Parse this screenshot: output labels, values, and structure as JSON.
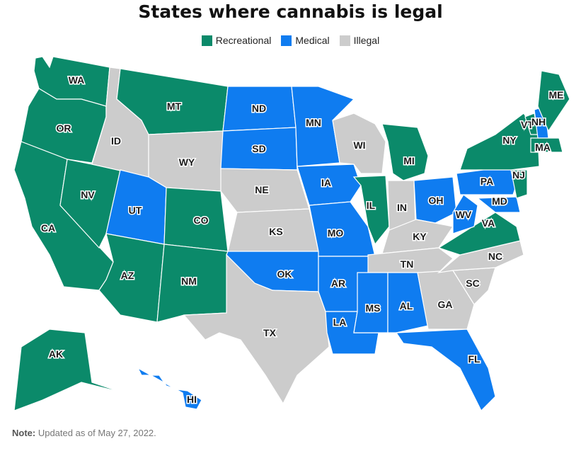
{
  "title": "States where cannabis is legal",
  "legend": [
    {
      "label": "Recreational",
      "status": "recreational"
    },
    {
      "label": "Medical",
      "status": "medical"
    },
    {
      "label": "Illegal",
      "status": "illegal"
    }
  ],
  "colors": {
    "recreational": "#0b8a6a",
    "medical": "#0f7cf0",
    "illegal": "#cccccc"
  },
  "note": {
    "label": "Note:",
    "text": " Updated as of May 27, 2022."
  },
  "states": [
    {
      "abbr": "WA",
      "status": "recreational"
    },
    {
      "abbr": "OR",
      "status": "recreational"
    },
    {
      "abbr": "CA",
      "status": "recreational"
    },
    {
      "abbr": "NV",
      "status": "recreational"
    },
    {
      "abbr": "ID",
      "status": "illegal"
    },
    {
      "abbr": "MT",
      "status": "recreational"
    },
    {
      "abbr": "WY",
      "status": "illegal"
    },
    {
      "abbr": "UT",
      "status": "medical"
    },
    {
      "abbr": "CO",
      "status": "recreational"
    },
    {
      "abbr": "AZ",
      "status": "recreational"
    },
    {
      "abbr": "NM",
      "status": "recreational"
    },
    {
      "abbr": "ND",
      "status": "medical"
    },
    {
      "abbr": "SD",
      "status": "medical"
    },
    {
      "abbr": "NE",
      "status": "illegal"
    },
    {
      "abbr": "KS",
      "status": "illegal"
    },
    {
      "abbr": "OK",
      "status": "medical"
    },
    {
      "abbr": "TX",
      "status": "illegal"
    },
    {
      "abbr": "MN",
      "status": "medical"
    },
    {
      "abbr": "IA",
      "status": "medical"
    },
    {
      "abbr": "MO",
      "status": "medical"
    },
    {
      "abbr": "AR",
      "status": "medical"
    },
    {
      "abbr": "LA",
      "status": "medical"
    },
    {
      "abbr": "WI",
      "status": "illegal"
    },
    {
      "abbr": "IL",
      "status": "recreational"
    },
    {
      "abbr": "MI",
      "status": "recreational"
    },
    {
      "abbr": "IN",
      "status": "illegal"
    },
    {
      "abbr": "OH",
      "status": "medical"
    },
    {
      "abbr": "KY",
      "status": "illegal"
    },
    {
      "abbr": "TN",
      "status": "illegal"
    },
    {
      "abbr": "MS",
      "status": "medical"
    },
    {
      "abbr": "AL",
      "status": "medical"
    },
    {
      "abbr": "GA",
      "status": "illegal"
    },
    {
      "abbr": "FL",
      "status": "medical"
    },
    {
      "abbr": "SC",
      "status": "illegal"
    },
    {
      "abbr": "NC",
      "status": "illegal"
    },
    {
      "abbr": "VA",
      "status": "recreational"
    },
    {
      "abbr": "WV",
      "status": "medical"
    },
    {
      "abbr": "MD",
      "status": "medical"
    },
    {
      "abbr": "PA",
      "status": "medical"
    },
    {
      "abbr": "NJ",
      "status": "recreational"
    },
    {
      "abbr": "NY",
      "status": "recreational"
    },
    {
      "abbr": "VT",
      "status": "recreational"
    },
    {
      "abbr": "NH",
      "status": "medical"
    },
    {
      "abbr": "MA",
      "status": "recreational"
    },
    {
      "abbr": "ME",
      "status": "recreational"
    },
    {
      "abbr": "AK",
      "status": "recreational"
    },
    {
      "abbr": "HI",
      "status": "medical"
    }
  ]
}
